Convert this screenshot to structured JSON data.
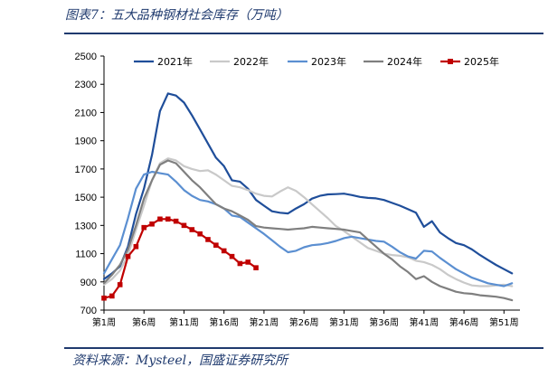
{
  "title": "图表7：五大品种钢材社会库存（万吨）",
  "source": "资料来源：Mysteel，国盛证券研究所",
  "chart_data": {
    "type": "line",
    "title": "",
    "xlabel": "",
    "ylabel": "",
    "ylim": [
      700,
      2500
    ],
    "yticks": [
      700,
      900,
      1100,
      1300,
      1500,
      1700,
      1900,
      2100,
      2300,
      2500
    ],
    "x_tick_labels": [
      "第1周",
      "第6周",
      "第11周",
      "第16周",
      "第21周",
      "第26周",
      "第31周",
      "第36周",
      "第41周",
      "第46周",
      "第51周"
    ],
    "x_tick_weeks": [
      1,
      6,
      11,
      16,
      21,
      26,
      31,
      36,
      41,
      46,
      51
    ],
    "xlim": [
      1,
      53
    ],
    "grid": false,
    "legend_position": "top",
    "series": [
      {
        "name": "2021年",
        "color": "#1f4e9a",
        "marker": "none",
        "x": [
          1,
          2,
          3,
          4,
          5,
          6,
          7,
          8,
          9,
          10,
          11,
          12,
          13,
          14,
          15,
          16,
          17,
          18,
          19,
          20,
          21,
          22,
          23,
          24,
          25,
          26,
          27,
          28,
          29,
          30,
          31,
          32,
          33,
          34,
          35,
          36,
          37,
          38,
          39,
          40,
          41,
          42,
          43,
          44,
          45,
          46,
          47,
          48,
          49,
          50,
          51,
          52
        ],
        "values": [
          920,
          960,
          1010,
          1150,
          1380,
          1560,
          1800,
          2110,
          2235,
          2220,
          2170,
          2080,
          1980,
          1880,
          1780,
          1720,
          1620,
          1610,
          1560,
          1480,
          1440,
          1400,
          1390,
          1385,
          1420,
          1450,
          1490,
          1510,
          1520,
          1522,
          1525,
          1515,
          1502,
          1495,
          1492,
          1480,
          1460,
          1440,
          1415,
          1390,
          1290,
          1330,
          1250,
          1210,
          1175,
          1160,
          1130,
          1090,
          1055,
          1020,
          990,
          960
        ]
      },
      {
        "name": "2022年",
        "color": "#c9c9c9",
        "marker": "none",
        "x": [
          1,
          2,
          3,
          4,
          5,
          6,
          7,
          8,
          9,
          10,
          11,
          12,
          13,
          14,
          15,
          16,
          17,
          18,
          19,
          20,
          21,
          22,
          23,
          24,
          25,
          26,
          27,
          28,
          29,
          30,
          31,
          32,
          33,
          34,
          35,
          36,
          37,
          38,
          39,
          40,
          41,
          42,
          43,
          44,
          45,
          46,
          47,
          48,
          49,
          50,
          51,
          52
        ],
        "values": [
          880,
          920,
          980,
          1090,
          1270,
          1440,
          1620,
          1740,
          1775,
          1760,
          1720,
          1700,
          1685,
          1690,
          1660,
          1620,
          1580,
          1570,
          1550,
          1525,
          1510,
          1505,
          1540,
          1570,
          1545,
          1500,
          1450,
          1400,
          1350,
          1295,
          1260,
          1220,
          1180,
          1140,
          1120,
          1100,
          1090,
          1085,
          1075,
          1050,
          1040,
          1020,
          990,
          950,
          920,
          895,
          875,
          870,
          870,
          875,
          880,
          870
        ]
      },
      {
        "name": "2023年",
        "color": "#5b8fd1",
        "marker": "none",
        "x": [
          1,
          2,
          3,
          4,
          5,
          6,
          7,
          8,
          9,
          10,
          11,
          12,
          13,
          14,
          15,
          16,
          17,
          18,
          19,
          20,
          21,
          22,
          23,
          24,
          25,
          26,
          27,
          28,
          29,
          30,
          31,
          32,
          33,
          34,
          35,
          36,
          37,
          38,
          39,
          40,
          41,
          42,
          43,
          44,
          45,
          46,
          47,
          48,
          49,
          50,
          51,
          52
        ],
        "values": [
          960,
          1060,
          1160,
          1350,
          1560,
          1660,
          1680,
          1670,
          1660,
          1610,
          1550,
          1510,
          1480,
          1470,
          1450,
          1420,
          1370,
          1360,
          1320,
          1280,
          1240,
          1195,
          1150,
          1110,
          1120,
          1145,
          1160,
          1165,
          1175,
          1190,
          1210,
          1220,
          1210,
          1200,
          1190,
          1185,
          1150,
          1110,
          1080,
          1065,
          1120,
          1115,
          1070,
          1030,
          990,
          960,
          930,
          910,
          890,
          880,
          870,
          890
        ]
      },
      {
        "name": "2024年",
        "color": "#7f7f7f",
        "marker": "none",
        "x": [
          1,
          2,
          3,
          4,
          5,
          6,
          7,
          8,
          9,
          10,
          11,
          12,
          13,
          14,
          15,
          16,
          17,
          18,
          19,
          20,
          21,
          22,
          23,
          24,
          25,
          26,
          27,
          28,
          29,
          30,
          31,
          32,
          33,
          34,
          35,
          36,
          37,
          38,
          39,
          40,
          41,
          42,
          43,
          44,
          45,
          46,
          47,
          48,
          49,
          50,
          51,
          52
        ],
        "values": [
          890,
          950,
          1020,
          1130,
          1300,
          1490,
          1620,
          1730,
          1760,
          1740,
          1680,
          1620,
          1570,
          1510,
          1450,
          1420,
          1400,
          1370,
          1340,
          1295,
          1285,
          1280,
          1275,
          1270,
          1275,
          1280,
          1290,
          1285,
          1280,
          1275,
          1270,
          1260,
          1250,
          1200,
          1150,
          1100,
          1060,
          1010,
          970,
          920,
          940,
          900,
          870,
          850,
          830,
          820,
          815,
          805,
          800,
          795,
          785,
          770
        ]
      },
      {
        "name": "2025年",
        "color": "#c00000",
        "marker": "square",
        "x": [
          1,
          2,
          3,
          4,
          5,
          6,
          7,
          8,
          9,
          10,
          11,
          12,
          13,
          14,
          15,
          16,
          17,
          18,
          19,
          20
        ],
        "values": [
          785,
          800,
          880,
          1080,
          1150,
          1285,
          1310,
          1345,
          1345,
          1330,
          1300,
          1270,
          1240,
          1200,
          1160,
          1120,
          1080,
          1030,
          1040,
          1000
        ]
      }
    ]
  }
}
